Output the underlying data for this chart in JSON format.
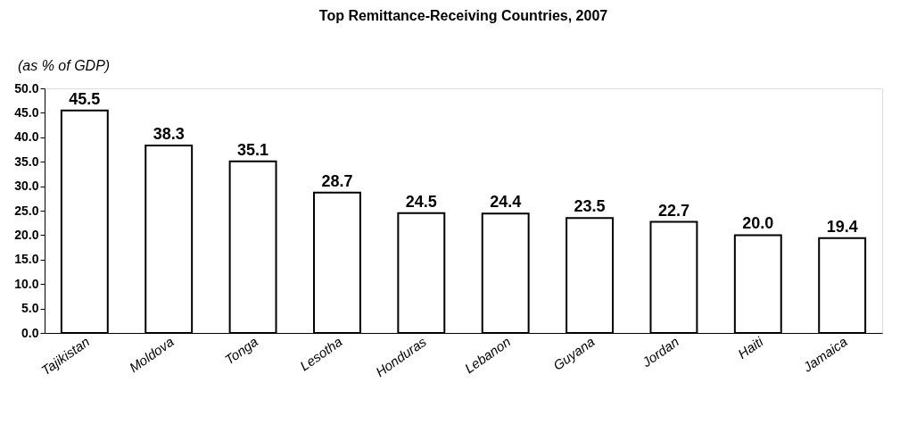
{
  "chart_data": {
    "type": "bar",
    "title": "Top Remittance-Receiving Countries, 2007",
    "subtitle": "(as % of GDP)",
    "categories": [
      "Tajikistan",
      "Moldova",
      "Tonga",
      "Lesotha",
      "Honduras",
      "Lebanon",
      "Guyana",
      "Jordan",
      "Haiti",
      "Jamaica"
    ],
    "values": [
      45.5,
      38.3,
      35.1,
      28.7,
      24.5,
      24.4,
      23.5,
      22.7,
      20.0,
      19.4
    ],
    "value_labels": [
      "45.5",
      "38.3",
      "35.1",
      "28.7",
      "24.5",
      "24.4",
      "23.5",
      "22.7",
      "20.0",
      "19.4"
    ],
    "color": "#ffffff",
    "ylim": [
      0,
      50
    ],
    "yticks": [
      {
        "value": 0,
        "label": "0.0"
      },
      {
        "value": 5,
        "label": "5.0"
      },
      {
        "value": 10,
        "label": "10.0"
      },
      {
        "value": 15,
        "label": "15.0"
      },
      {
        "value": 20,
        "label": "20.0"
      },
      {
        "value": 25,
        "label": "25.0"
      },
      {
        "value": 30,
        "label": "30.0"
      },
      {
        "value": 35,
        "label": "35.0"
      },
      {
        "value": 40,
        "label": "40.0"
      },
      {
        "value": 45,
        "label": "45.0"
      },
      {
        "value": 50,
        "label": "50.0"
      }
    ],
    "grid": false
  }
}
